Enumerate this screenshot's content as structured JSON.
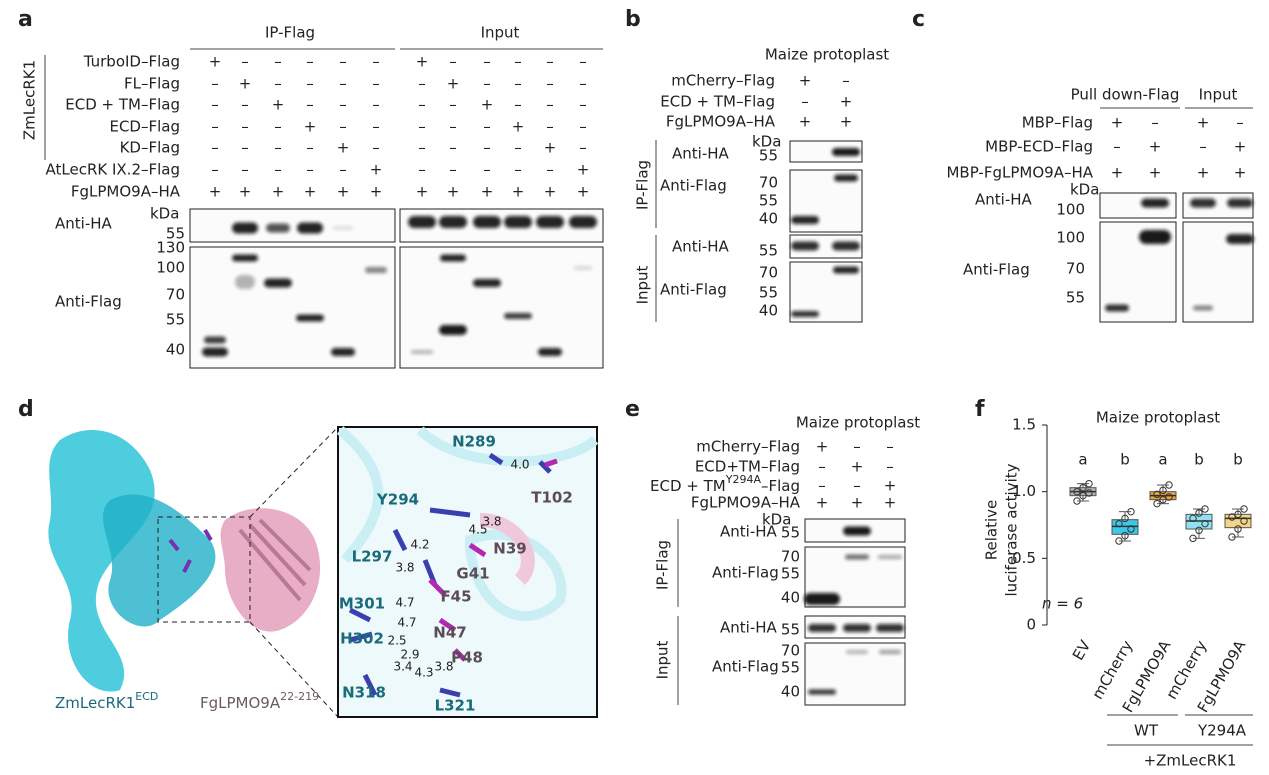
{
  "panel_labels": [
    "a",
    "b",
    "c",
    "d",
    "e",
    "f"
  ],
  "panel_a": {
    "columns": [
      "IP-Flag",
      "Input"
    ],
    "side_label": "ZmLecRK1",
    "kda": "kDa",
    "rows": [
      {
        "label": "TurboID–Flag",
        "signs": [
          "+",
          "–",
          "–",
          "–",
          "–",
          "–",
          "+",
          "–",
          "–",
          "–",
          "–",
          "–"
        ]
      },
      {
        "label": "FL–Flag",
        "signs": [
          "–",
          "+",
          "–",
          "–",
          "–",
          "–",
          "–",
          "+",
          "–",
          "–",
          "–",
          "–"
        ]
      },
      {
        "label": "ECD + TM–Flag",
        "signs": [
          "–",
          "–",
          "+",
          "–",
          "–",
          "–",
          "–",
          "–",
          "+",
          "–",
          "–",
          "–"
        ]
      },
      {
        "label": "ECD–Flag",
        "signs": [
          "–",
          "–",
          "–",
          "+",
          "–",
          "–",
          "–",
          "–",
          "–",
          "+",
          "–",
          "–"
        ]
      },
      {
        "label": "KD–Flag",
        "signs": [
          "–",
          "–",
          "–",
          "–",
          "+",
          "–",
          "–",
          "–",
          "–",
          "–",
          "+",
          "–"
        ]
      },
      {
        "label": "AtLecRK IX.2–Flag",
        "signs": [
          "–",
          "–",
          "–",
          "–",
          "–",
          "+",
          "–",
          "–",
          "–",
          "–",
          "–",
          "+"
        ]
      },
      {
        "label": "FgLPMO9A–HA",
        "signs": [
          "+",
          "+",
          "+",
          "+",
          "+",
          "+",
          "+",
          "+",
          "+",
          "+",
          "+",
          "+"
        ]
      }
    ],
    "blots": [
      {
        "label": "Anti-HA",
        "markers": [
          55
        ]
      },
      {
        "label": "Anti-Flag",
        "markers": [
          130,
          100,
          70,
          55,
          40
        ]
      }
    ]
  },
  "panel_b": {
    "title": "Maize protoplast",
    "kda": "kDa",
    "rows": [
      {
        "label": "mCherry–Flag",
        "signs": [
          "+",
          "–"
        ]
      },
      {
        "label": "ECD + TM–Flag",
        "signs": [
          "–",
          "+"
        ]
      },
      {
        "label": "FgLPMO9A–HA",
        "signs": [
          "+",
          "+"
        ]
      }
    ],
    "groups": [
      "IP-Flag",
      "Input"
    ],
    "blots": [
      {
        "label": "Anti-HA",
        "markers": [
          55
        ]
      },
      {
        "label": "Anti-Flag",
        "markers": [
          70,
          55,
          40
        ]
      },
      {
        "label": "Anti-HA",
        "markers": [
          55
        ]
      },
      {
        "label": "Anti-Flag",
        "markers": [
          70,
          55,
          40
        ]
      }
    ]
  },
  "panel_c": {
    "columns": [
      "Pull down-Flag",
      "Input"
    ],
    "kda": "kDa",
    "rows": [
      {
        "label": "MBP–Flag",
        "signs": [
          "+",
          "–",
          "+",
          "–"
        ]
      },
      {
        "label": "MBP-ECD–Flag",
        "signs": [
          "–",
          "+",
          "–",
          "+"
        ]
      },
      {
        "label": "MBP-FgLPMO9A–HA",
        "signs": [
          "+",
          "+",
          "+",
          "+"
        ]
      }
    ],
    "blots": [
      {
        "label": "Anti-HA",
        "markers": [
          100
        ]
      },
      {
        "label": "Anti-Flag",
        "markers": [
          100,
          70,
          55
        ]
      }
    ]
  },
  "panel_d": {
    "structure_labels": [
      {
        "main": "ZmLecRK1",
        "sup": "ECD"
      },
      {
        "main": "FgLPMO9A",
        "sup": "22-219"
      }
    ],
    "residues": [
      "N289",
      "T102",
      "Y294",
      "L297",
      "N39",
      "G41",
      "F45",
      "M301",
      "H302",
      "N47",
      "P48",
      "N318",
      "L321"
    ],
    "distances": [
      "4.0",
      "3.8",
      "4.5",
      "4.2",
      "3.8",
      "4.7",
      "4.7",
      "2.5",
      "2.9",
      "3.4",
      "4.3",
      "3.8"
    ]
  },
  "panel_e": {
    "title": "Maize protoplast",
    "kda": "kDa",
    "rows": [
      {
        "label": "mCherry–Flag",
        "signs": [
          "+",
          "–",
          "–"
        ]
      },
      {
        "label": "ECD+TM–Flag",
        "signs": [
          "–",
          "+",
          "–"
        ]
      },
      {
        "label": {
          "main": "ECD + TM",
          "sup": "Y294A",
          "tail": "–Flag"
        },
        "signs": [
          "–",
          "–",
          "+"
        ]
      },
      {
        "label": "FgLPMO9A–HA",
        "signs": [
          "+",
          "+",
          "+"
        ]
      }
    ],
    "groups": [
      "IP-Flag",
      "Input"
    ],
    "blots": [
      {
        "label": "Anti-HA",
        "markers": [
          55
        ]
      },
      {
        "label": "Anti-Flag",
        "markers": [
          70,
          55,
          40
        ]
      },
      {
        "label": "Anti-HA",
        "markers": [
          55
        ]
      },
      {
        "label": "Anti-Flag",
        "markers": [
          70,
          55,
          40
        ]
      }
    ]
  },
  "chart_data": {
    "type": "box",
    "title": "Maize protoplast",
    "y_label": [
      "Relative",
      "luciferase activity"
    ],
    "categories": [
      "EV",
      "mCherry",
      "FgLPMO9A",
      "mCherry",
      "FgLPMO9A"
    ],
    "letters": [
      "a",
      "b",
      "a",
      "b",
      "b"
    ],
    "boxes": [
      {
        "color": "#b4b4b4",
        "whisker_low": 0.93,
        "q1": 0.97,
        "median": 1.0,
        "q3": 1.03,
        "whisker_high": 1.06,
        "points": [
          0.93,
          0.97,
          0.99,
          1.0,
          1.03,
          1.06
        ]
      },
      {
        "color": "#3cc8e6",
        "whisker_low": 0.63,
        "q1": 0.68,
        "median": 0.74,
        "q3": 0.79,
        "whisker_high": 0.85,
        "points": [
          0.63,
          0.67,
          0.72,
          0.76,
          0.8,
          0.85
        ]
      },
      {
        "color": "#eea33a",
        "whisker_low": 0.91,
        "q1": 0.94,
        "median": 0.97,
        "q3": 1.0,
        "whisker_high": 1.05,
        "points": [
          0.91,
          0.94,
          0.96,
          0.98,
          1.01,
          1.05
        ]
      },
      {
        "color": "#90e2f2",
        "whisker_low": 0.65,
        "q1": 0.72,
        "median": 0.78,
        "q3": 0.83,
        "whisker_high": 0.87,
        "points": [
          0.65,
          0.71,
          0.76,
          0.8,
          0.84,
          0.87
        ]
      },
      {
        "color": "#f5d585",
        "whisker_low": 0.66,
        "q1": 0.73,
        "median": 0.8,
        "q3": 0.83,
        "whisker_high": 0.87,
        "points": [
          0.66,
          0.72,
          0.78,
          0.81,
          0.83,
          0.87
        ]
      }
    ],
    "ylim": [
      0,
      1.5
    ],
    "yticks": [
      0,
      0.5,
      {
        "value": 1,
        "label": "1.0"
      },
      1.5
    ],
    "annotation": "n = 6",
    "groups": [
      "WT",
      "Y294A"
    ],
    "group_label": "+ZmLecRK1"
  }
}
